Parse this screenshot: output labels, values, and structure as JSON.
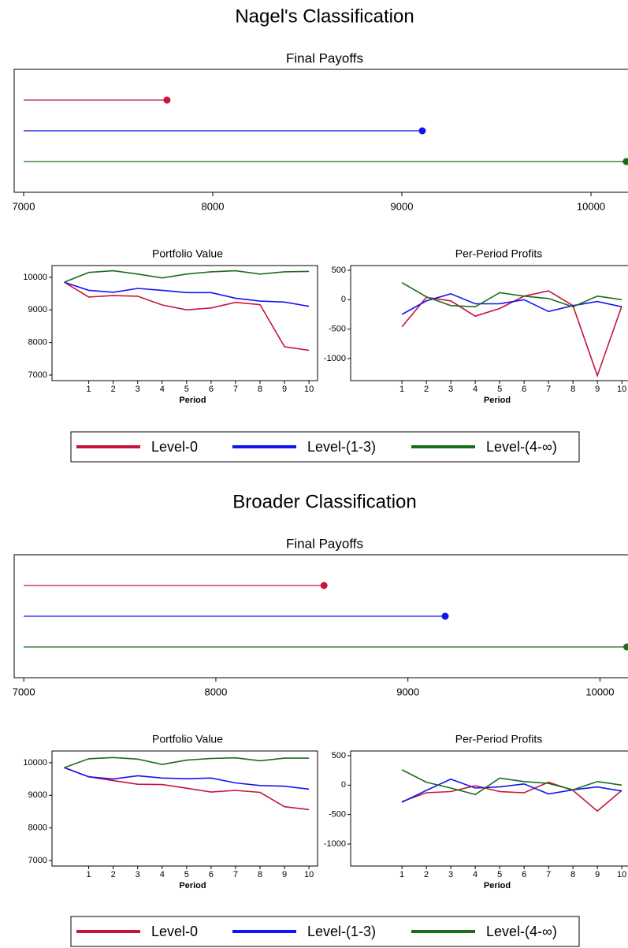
{
  "headings": [
    "Nagel's Classification",
    "Broader Classification"
  ],
  "chart_data": [
    {
      "type": "dot",
      "title": "Final Payoffs",
      "values": [
        7758,
        9108,
        10187
      ],
      "colors": [
        "#c8143c",
        "#1414f0",
        "#1a6e1a"
      ],
      "xlim": [
        6950,
        10200
      ],
      "xticks": [
        7000,
        8000,
        9000,
        10000
      ]
    },
    {
      "type": "line",
      "title": "Portfolio Value",
      "xlabel": "Period",
      "x": [
        0,
        1,
        2,
        3,
        4,
        5,
        6,
        7,
        8,
        9,
        10
      ],
      "series": [
        {
          "name": "Level-0",
          "color": "#c8143c",
          "values": [
            9850,
            9395,
            9440,
            9420,
            9150,
            9000,
            9060,
            9230,
            9160,
            7870,
            7760
          ]
        },
        {
          "name": "Level-(1-3)",
          "color": "#1414f0",
          "values": [
            9850,
            9600,
            9540,
            9660,
            9600,
            9530,
            9530,
            9360,
            9270,
            9240,
            9110
          ]
        },
        {
          "name": "Level-(4-∞)",
          "color": "#1a6e1a",
          "values": [
            9850,
            10150,
            10200,
            10100,
            9980,
            10100,
            10170,
            10200,
            10100,
            10170,
            10180
          ]
        }
      ],
      "xlim": [
        -0.5,
        10.35
      ],
      "xticks": [
        1,
        2,
        3,
        4,
        5,
        6,
        7,
        8,
        9,
        10
      ],
      "ylim": [
        6830,
        10360
      ],
      "yticks": [
        7000,
        8000,
        9000,
        10000
      ]
    },
    {
      "type": "line",
      "title": "Per-Period Profits",
      "xlabel": "Period",
      "x": [
        1,
        2,
        3,
        4,
        5,
        6,
        7,
        8,
        9,
        10
      ],
      "series": [
        {
          "name": "Level-0",
          "color": "#c8143c",
          "values": [
            -460,
            40,
            -20,
            -280,
            -150,
            60,
            150,
            -100,
            -1290,
            -110
          ]
        },
        {
          "name": "Level-(1-3)",
          "color": "#1414f0",
          "values": [
            -250,
            -20,
            100,
            -70,
            -70,
            0,
            -200,
            -100,
            -30,
            -120
          ]
        },
        {
          "name": "Level-(4-∞)",
          "color": "#1a6e1a",
          "values": [
            290,
            50,
            -100,
            -120,
            120,
            60,
            20,
            -120,
            60,
            0
          ]
        }
      ],
      "xlim": [
        -1.1,
        10.35
      ],
      "xticks": [
        1,
        2,
        3,
        4,
        5,
        6,
        7,
        8,
        9,
        10
      ],
      "ylim": [
        -1375,
        580
      ],
      "yticks": [
        500,
        0,
        -500,
        -1000
      ]
    },
    {
      "type": "dot",
      "title": "Final Payoffs",
      "values": [
        8563,
        9194,
        10140
      ],
      "colors": [
        "#c8143c",
        "#1414f0",
        "#1a6e1a"
      ],
      "xlim": [
        6950,
        10150
      ],
      "xticks": [
        7000,
        8000,
        9000,
        10000
      ]
    },
    {
      "type": "line",
      "title": "Portfolio Value",
      "xlabel": "Period",
      "x": [
        0,
        1,
        2,
        3,
        4,
        5,
        6,
        7,
        8,
        9,
        10
      ],
      "series": [
        {
          "name": "Level-0",
          "color": "#c8143c",
          "values": [
            9850,
            9570,
            9450,
            9340,
            9330,
            9220,
            9100,
            9150,
            9090,
            8650,
            8560
          ]
        },
        {
          "name": "Level-(1-3)",
          "color": "#1414f0",
          "values": [
            9850,
            9570,
            9500,
            9600,
            9530,
            9510,
            9530,
            9380,
            9300,
            9280,
            9190
          ]
        },
        {
          "name": "Level-(4-∞)",
          "color": "#1a6e1a",
          "values": [
            9850,
            10120,
            10160,
            10110,
            9950,
            10080,
            10130,
            10150,
            10060,
            10140,
            10140
          ]
        }
      ],
      "xlim": [
        -0.5,
        10.35
      ],
      "xticks": [
        1,
        2,
        3,
        4,
        5,
        6,
        7,
        8,
        9,
        10
      ],
      "ylim": [
        6830,
        10360
      ],
      "yticks": [
        7000,
        8000,
        9000,
        10000
      ]
    },
    {
      "type": "line",
      "title": "Per-Period Profits",
      "xlabel": "Period",
      "x": [
        1,
        2,
        3,
        4,
        5,
        6,
        7,
        8,
        9,
        10
      ],
      "series": [
        {
          "name": "Level-0",
          "color": "#c8143c",
          "values": [
            -280,
            -130,
            -110,
            -10,
            -110,
            -130,
            50,
            -90,
            -440,
            -90
          ]
        },
        {
          "name": "Level-(1-3)",
          "color": "#1414f0",
          "values": [
            -290,
            -90,
            100,
            -50,
            -30,
            20,
            -150,
            -80,
            -30,
            -100
          ]
        },
        {
          "name": "Level-(4-∞)",
          "color": "#1a6e1a",
          "values": [
            260,
            50,
            -50,
            -160,
            120,
            60,
            30,
            -80,
            60,
            0
          ]
        }
      ],
      "xlim": [
        -1.1,
        10.35
      ],
      "xticks": [
        1,
        2,
        3,
        4,
        5,
        6,
        7,
        8,
        9,
        10
      ],
      "ylim": [
        -1375,
        580
      ],
      "yticks": [
        500,
        0,
        -500,
        -1000
      ]
    }
  ]
}
